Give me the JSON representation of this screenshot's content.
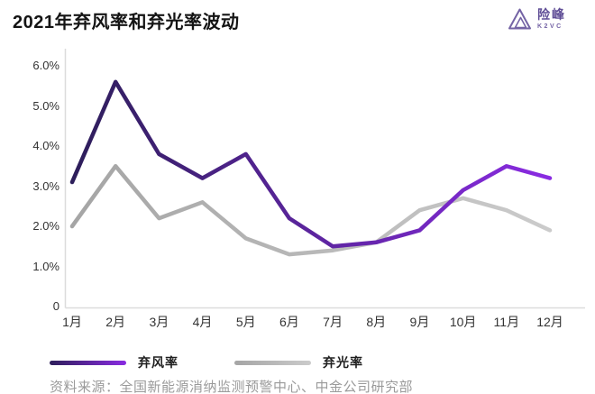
{
  "header": {
    "title": "2021年弃风率和弃光率波动",
    "logo": {
      "name": "险峰",
      "sub": "K2VC",
      "color": "#7463a5"
    }
  },
  "chart_data": {
    "type": "line",
    "title": "2021年弃风率和弃光率波动",
    "categories": [
      "1月",
      "2月",
      "3月",
      "4月",
      "5月",
      "6月",
      "7月",
      "8月",
      "9月",
      "10月",
      "11月",
      "12月"
    ],
    "series": [
      {
        "name": "弃风率",
        "key": "wind-curtailment-rate",
        "values": [
          3.1,
          5.6,
          3.8,
          3.2,
          3.8,
          2.2,
          1.5,
          1.6,
          1.9,
          2.9,
          3.5,
          3.2
        ],
        "color_start": "#2d1e5a",
        "color_end": "#8a2be2"
      },
      {
        "name": "弃光率",
        "key": "solar-curtailment-rate",
        "values": [
          2.0,
          3.5,
          2.2,
          2.6,
          1.7,
          1.3,
          1.4,
          1.6,
          2.4,
          2.7,
          2.4,
          1.9
        ],
        "color_start": "#a5a5a5",
        "color_end": "#cbcbcb"
      }
    ],
    "xlabel": "",
    "ylabel": "",
    "ylim": [
      0,
      6
    ],
    "yticks": [
      {
        "value": 6,
        "label": "6.0%"
      },
      {
        "value": 5,
        "label": "5.0%"
      },
      {
        "value": 4,
        "label": "4.0%"
      },
      {
        "value": 3,
        "label": "3.0%"
      },
      {
        "value": 2,
        "label": "2.0%"
      },
      {
        "value": 1,
        "label": "1.0%"
      },
      {
        "value": 0,
        "label": "0"
      }
    ],
    "grid": false,
    "legend_position": "bottom"
  },
  "footer": {
    "source": "资料来源：全国新能源消纳监测预警中心、中金公司研究部"
  }
}
